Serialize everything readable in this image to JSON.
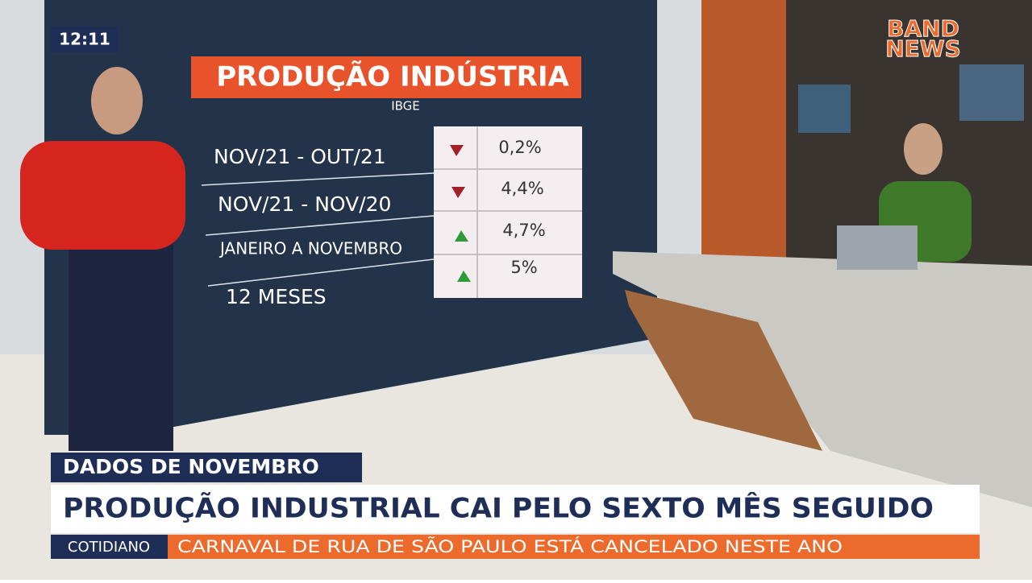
{
  "clock": "12:11",
  "logo": {
    "line1": "BAND",
    "line2": "NEWS"
  },
  "board": {
    "title": "PRODUÇÃO INDÚSTRIA",
    "source": "IBGE",
    "rows": [
      {
        "label": "NOV/21 - OUT/21",
        "value": "0,2%"
      },
      {
        "label": "NOV/21 - NOV/20",
        "value": "4,4%"
      },
      {
        "label": "JANEIRO A NOVEMBRO",
        "value": "4,7%"
      },
      {
        "label": "12 MESES",
        "value": "5%"
      }
    ]
  },
  "lower_third": {
    "tag": "DADOS DE NOVEMBRO",
    "headline": "PRODUÇÃO INDUSTRIAL CAI PELO SEXTO MÊS SEGUIDO"
  },
  "ticker": {
    "section": "COTIDIANO",
    "text": "CARNAVAL DE RUA DE SÃO PAULO ESTÁ CANCELADO NESTE ANO"
  }
}
